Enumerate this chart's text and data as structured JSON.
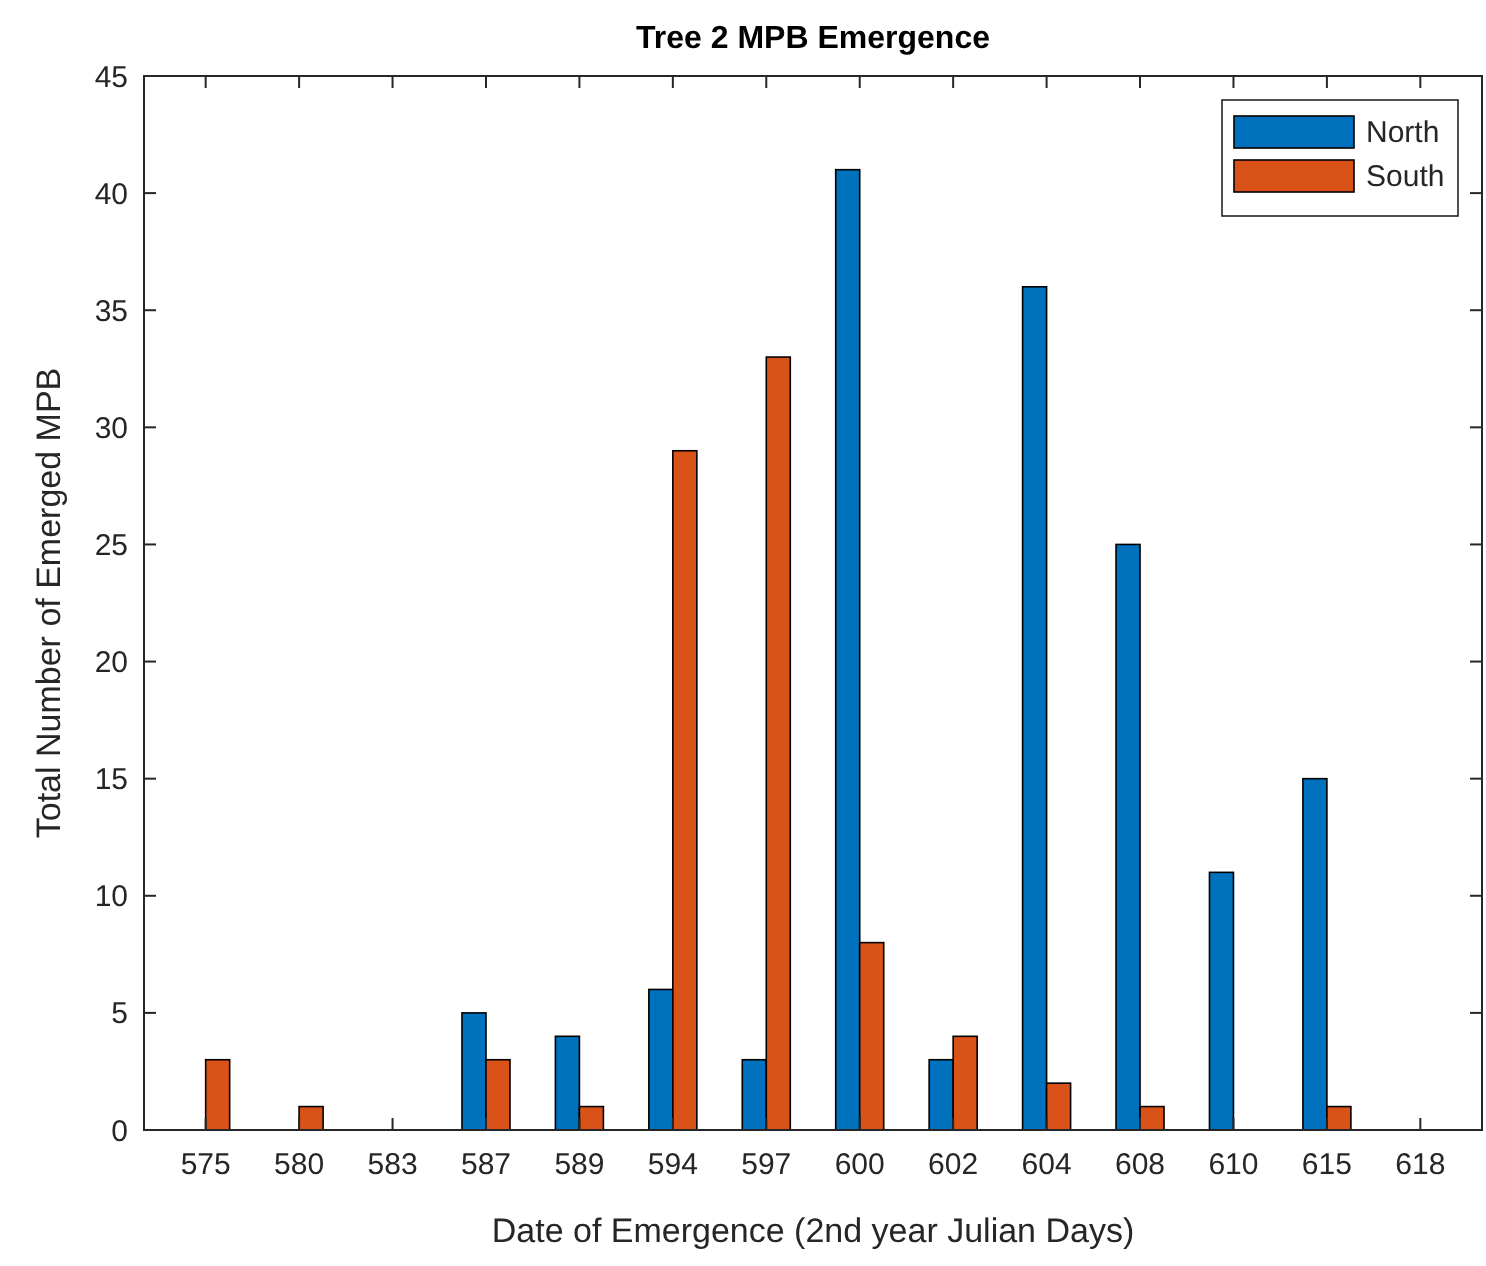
{
  "chart_data": {
    "type": "bar",
    "title": "Tree 2 MPB Emergence",
    "xlabel": "Date of Emergence (2nd year Julian Days)",
    "ylabel": "Total Number of Emerged MPB",
    "categories": [
      "575",
      "580",
      "583",
      "587",
      "589",
      "594",
      "597",
      "600",
      "602",
      "604",
      "608",
      "610",
      "615",
      "618"
    ],
    "series": [
      {
        "name": "North",
        "color": "#0072bd",
        "values": [
          0,
          0,
          0,
          5,
          4,
          6,
          3,
          41,
          3,
          36,
          25,
          11,
          15,
          0
        ]
      },
      {
        "name": "South",
        "color": "#d95319",
        "values": [
          3,
          1,
          0,
          3,
          1,
          29,
          33,
          8,
          4,
          2,
          1,
          0,
          1,
          0
        ]
      }
    ],
    "ylim": [
      0,
      45
    ],
    "yticks": [
      0,
      5,
      10,
      15,
      20,
      25,
      30,
      35,
      40,
      45
    ],
    "grid": false,
    "legend": "top right"
  }
}
